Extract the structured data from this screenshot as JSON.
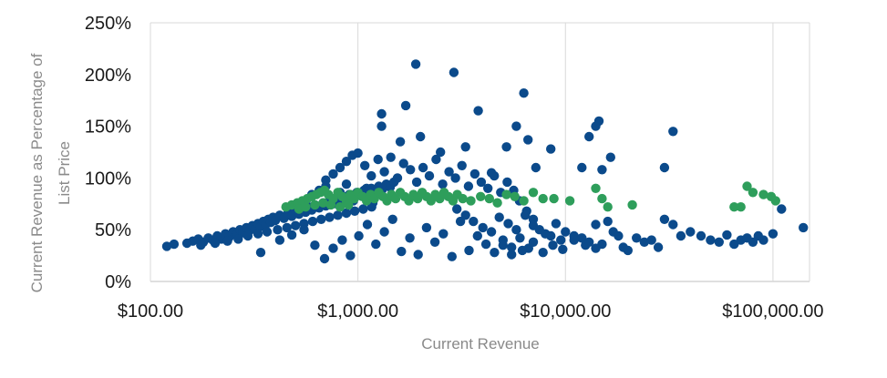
{
  "chart_data": {
    "type": "scatter",
    "xlabel": "Current Revenue",
    "ylabel_lines": [
      "Current Revenue as Percentage of",
      "List Price"
    ],
    "x_scale": "log",
    "xlim": [
      100,
      150000
    ],
    "ylim": [
      0,
      250
    ],
    "x_ticks": [
      {
        "value": 100,
        "label": "$100.00"
      },
      {
        "value": 1000,
        "label": "$1,000.00"
      },
      {
        "value": 10000,
        "label": "$10,000.00"
      },
      {
        "value": 100000,
        "label": "$100,000.00"
      }
    ],
    "y_ticks": [
      {
        "value": 0,
        "label": "0%"
      },
      {
        "value": 50,
        "label": "50%"
      },
      {
        "value": 100,
        "label": "100%"
      },
      {
        "value": 150,
        "label": "150%"
      },
      {
        "value": 200,
        "label": "200%"
      },
      {
        "value": 250,
        "label": "250%"
      }
    ],
    "grid": "vertical",
    "series": [
      {
        "color": "#0b4a8b",
        "points": [
          [
            120,
            34
          ],
          [
            130,
            36
          ],
          [
            160,
            39
          ],
          [
            170,
            41
          ],
          [
            180,
            38
          ],
          [
            190,
            42
          ],
          [
            200,
            40
          ],
          [
            210,
            44
          ],
          [
            220,
            41
          ],
          [
            230,
            46
          ],
          [
            240,
            43
          ],
          [
            250,
            48
          ],
          [
            260,
            45
          ],
          [
            270,
            50
          ],
          [
            280,
            47
          ],
          [
            290,
            52
          ],
          [
            300,
            49
          ],
          [
            310,
            54
          ],
          [
            320,
            51
          ],
          [
            330,
            56
          ],
          [
            340,
            53
          ],
          [
            350,
            58
          ],
          [
            360,
            55
          ],
          [
            370,
            60
          ],
          [
            380,
            57
          ],
          [
            390,
            62
          ],
          [
            400,
            59
          ],
          [
            420,
            64
          ],
          [
            440,
            61
          ],
          [
            460,
            66
          ],
          [
            480,
            63
          ],
          [
            500,
            68
          ],
          [
            520,
            65
          ],
          [
            540,
            70
          ],
          [
            560,
            67
          ],
          [
            580,
            72
          ],
          [
            600,
            69
          ],
          [
            620,
            74
          ],
          [
            650,
            71
          ],
          [
            680,
            76
          ],
          [
            700,
            73
          ],
          [
            730,
            78
          ],
          [
            760,
            75
          ],
          [
            790,
            80
          ],
          [
            820,
            77
          ],
          [
            850,
            82
          ],
          [
            880,
            79
          ],
          [
            910,
            84
          ],
          [
            950,
            81
          ],
          [
            990,
            86
          ],
          [
            1030,
            83
          ],
          [
            1070,
            88
          ],
          [
            1110,
            85
          ],
          [
            1160,
            90
          ],
          [
            1210,
            87
          ],
          [
            1260,
            92
          ],
          [
            1310,
            89
          ],
          [
            1370,
            94
          ],
          [
            1430,
            91
          ],
          [
            1490,
            96
          ],
          [
            150,
            37
          ],
          [
            175,
            35
          ],
          [
            205,
            37
          ],
          [
            235,
            39
          ],
          [
            265,
            41
          ],
          [
            295,
            44
          ],
          [
            330,
            46
          ],
          [
            365,
            48
          ],
          [
            410,
            50
          ],
          [
            455,
            52
          ],
          [
            500,
            54
          ],
          [
            550,
            56
          ],
          [
            605,
            58
          ],
          [
            665,
            60
          ],
          [
            730,
            62
          ],
          [
            800,
            64
          ],
          [
            880,
            66
          ],
          [
            965,
            68
          ],
          [
            1060,
            70
          ],
          [
            1165,
            72
          ],
          [
            340,
            28
          ],
          [
            420,
            40
          ],
          [
            480,
            45
          ],
          [
            550,
            50
          ],
          [
            620,
            35
          ],
          [
            690,
            22
          ],
          [
            760,
            32
          ],
          [
            840,
            40
          ],
          [
            920,
            25
          ],
          [
            1010,
            44
          ],
          [
            1110,
            55
          ],
          [
            1220,
            36
          ],
          [
            1340,
            48
          ],
          [
            1470,
            60
          ],
          [
            1620,
            29
          ],
          [
            1780,
            42
          ],
          [
            1950,
            26
          ],
          [
            2140,
            52
          ],
          [
            2350,
            38
          ],
          [
            2580,
            46
          ],
          [
            2840,
            24
          ],
          [
            3120,
            58
          ],
          [
            3430,
            30
          ],
          [
            3770,
            44
          ],
          [
            4140,
            36
          ],
          [
            4550,
            28
          ],
          [
            5000,
            40
          ],
          [
            5500,
            26
          ],
          [
            6040,
            42
          ],
          [
            6640,
            32
          ],
          [
            700,
            98
          ],
          [
            760,
            104
          ],
          [
            820,
            110
          ],
          [
            880,
            116
          ],
          [
            940,
            122
          ],
          [
            1000,
            124
          ],
          [
            1080,
            112
          ],
          [
            1160,
            102
          ],
          [
            1250,
            118
          ],
          [
            1340,
            106
          ],
          [
            1440,
            120
          ],
          [
            1550,
            100
          ],
          [
            1660,
            114
          ],
          [
            1790,
            108
          ],
          [
            1920,
            96
          ],
          [
            2060,
            110
          ],
          [
            2210,
            102
          ],
          [
            2380,
            118
          ],
          [
            2560,
            94
          ],
          [
            2750,
            106
          ],
          [
            2950,
            100
          ],
          [
            3170,
            112
          ],
          [
            3410,
            92
          ],
          [
            3660,
            104
          ],
          [
            3930,
            96
          ],
          [
            4230,
            90
          ],
          [
            4540,
            102
          ],
          [
            4880,
            86
          ],
          [
            5240,
            96
          ],
          [
            5630,
            88
          ],
          [
            1300,
            150
          ],
          [
            1300,
            162
          ],
          [
            1600,
            135
          ],
          [
            1700,
            170
          ],
          [
            1900,
            210
          ],
          [
            2000,
            140
          ],
          [
            2500,
            125
          ],
          [
            2900,
            202
          ],
          [
            3300,
            130
          ],
          [
            3800,
            165
          ],
          [
            4400,
            105
          ],
          [
            5200,
            130
          ],
          [
            5800,
            150
          ],
          [
            6300,
            182
          ],
          [
            6600,
            137
          ],
          [
            7200,
            110
          ],
          [
            8500,
            128
          ],
          [
            12000,
            110
          ],
          [
            13000,
            140
          ],
          [
            14000,
            150
          ],
          [
            14500,
            155
          ],
          [
            15000,
            108
          ],
          [
            16500,
            120
          ],
          [
            30000,
            110
          ],
          [
            33000,
            145
          ],
          [
            6000,
            78
          ],
          [
            6500,
            68
          ],
          [
            7000,
            60
          ],
          [
            7500,
            50
          ],
          [
            8000,
            46
          ],
          [
            8500,
            44
          ],
          [
            9000,
            56
          ],
          [
            9500,
            40
          ],
          [
            10000,
            48
          ],
          [
            11000,
            44
          ],
          [
            12000,
            42
          ],
          [
            13000,
            38
          ],
          [
            14000,
            55
          ],
          [
            15000,
            36
          ],
          [
            16000,
            58
          ],
          [
            17000,
            48
          ],
          [
            18000,
            44
          ],
          [
            19000,
            33
          ],
          [
            20000,
            30
          ],
          [
            22000,
            42
          ],
          [
            24000,
            38
          ],
          [
            26000,
            40
          ],
          [
            28000,
            33
          ],
          [
            30000,
            60
          ],
          [
            33000,
            55
          ],
          [
            36000,
            44
          ],
          [
            40000,
            48
          ],
          [
            45000,
            44
          ],
          [
            50000,
            40
          ],
          [
            55000,
            38
          ],
          [
            60000,
            45
          ],
          [
            65000,
            36
          ],
          [
            70000,
            40
          ],
          [
            75000,
            42
          ],
          [
            80000,
            38
          ],
          [
            85000,
            44
          ],
          [
            90000,
            40
          ],
          [
            100000,
            46
          ],
          [
            110000,
            70
          ],
          [
            140000,
            52
          ],
          [
            5000,
            35
          ],
          [
            5500,
            33
          ],
          [
            6200,
            30
          ],
          [
            7000,
            38
          ],
          [
            7800,
            28
          ],
          [
            8700,
            35
          ],
          [
            9700,
            31
          ],
          [
            11000,
            40
          ],
          [
            12500,
            35
          ],
          [
            14000,
            32
          ],
          [
            3000,
            70
          ],
          [
            3300,
            64
          ],
          [
            3600,
            58
          ],
          [
            4000,
            52
          ],
          [
            4400,
            48
          ],
          [
            4800,
            62
          ],
          [
            5300,
            56
          ],
          [
            5800,
            50
          ],
          [
            6400,
            64
          ],
          [
            7000,
            54
          ],
          [
            600,
            84
          ],
          [
            650,
            88
          ],
          [
            700,
            92
          ],
          [
            760,
            80
          ],
          [
            820,
            86
          ],
          [
            880,
            94
          ],
          [
            950,
            78
          ],
          [
            1020,
            84
          ],
          [
            1100,
            90
          ],
          [
            1180,
            76
          ]
        ]
      },
      {
        "color": "#2e9e5b",
        "points": [
          [
            450,
            72
          ],
          [
            480,
            74
          ],
          [
            510,
            76
          ],
          [
            540,
            78
          ],
          [
            570,
            80
          ],
          [
            600,
            82
          ],
          [
            630,
            84
          ],
          [
            660,
            86
          ],
          [
            690,
            88
          ],
          [
            720,
            84
          ],
          [
            760,
            80
          ],
          [
            800,
            86
          ],
          [
            840,
            82
          ],
          [
            880,
            78
          ],
          [
            920,
            84
          ],
          [
            960,
            80
          ],
          [
            1000,
            86
          ],
          [
            1050,
            82
          ],
          [
            1100,
            78
          ],
          [
            1150,
            84
          ],
          [
            1200,
            80
          ],
          [
            1260,
            86
          ],
          [
            1320,
            82
          ],
          [
            1380,
            78
          ],
          [
            1450,
            84
          ],
          [
            1520,
            80
          ],
          [
            1600,
            86
          ],
          [
            1680,
            82
          ],
          [
            1760,
            78
          ],
          [
            1850,
            84
          ],
          [
            1940,
            80
          ],
          [
            2040,
            86
          ],
          [
            2140,
            82
          ],
          [
            2250,
            78
          ],
          [
            2360,
            84
          ],
          [
            2480,
            80
          ],
          [
            2600,
            86
          ],
          [
            2730,
            82
          ],
          [
            2870,
            78
          ],
          [
            3010,
            84
          ],
          [
            3200,
            80
          ],
          [
            3500,
            78
          ],
          [
            3900,
            82
          ],
          [
            4300,
            80
          ],
          [
            4700,
            76
          ],
          [
            5200,
            84
          ],
          [
            5700,
            82
          ],
          [
            6300,
            78
          ],
          [
            7000,
            86
          ],
          [
            7800,
            80
          ],
          [
            8800,
            80
          ],
          [
            10500,
            78
          ],
          [
            14000,
            90
          ],
          [
            15000,
            80
          ],
          [
            16000,
            72
          ],
          [
            21000,
            74
          ],
          [
            75000,
            92
          ],
          [
            80000,
            86
          ],
          [
            90000,
            84
          ],
          [
            98000,
            82
          ],
          [
            103000,
            78
          ],
          [
            65000,
            72
          ],
          [
            70000,
            72
          ],
          [
            520,
            70
          ],
          [
            560,
            72
          ],
          [
            620,
            74
          ],
          [
            680,
            76
          ],
          [
            740,
            74
          ],
          [
            820,
            72
          ],
          [
            900,
            74
          ]
        ]
      }
    ]
  }
}
